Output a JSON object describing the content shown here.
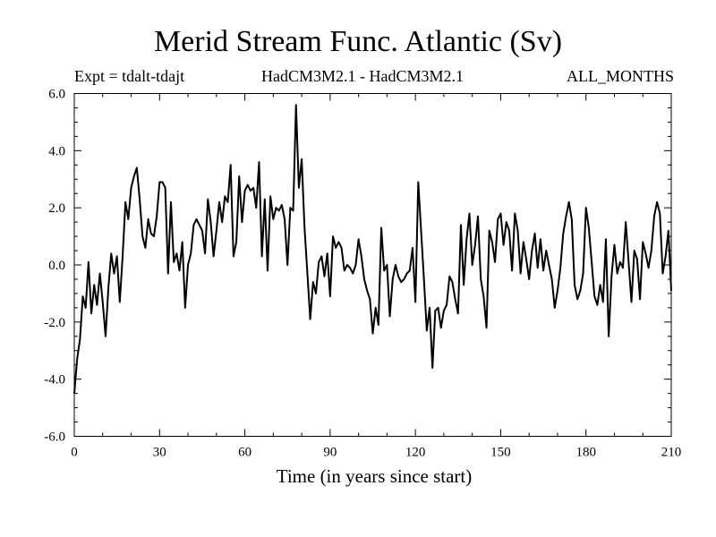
{
  "header": {
    "title": "Merid Stream Func. Atlantic (Sv)",
    "expt_label": "Expt = tdalt-tdajt",
    "model_label": "HadCM3M2.1 - HadCM3M2.1",
    "months_label": "ALL_MONTHS"
  },
  "colors": {
    "line": "#000000",
    "background": "#ffffff",
    "axis": "#000000"
  },
  "chart_data": {
    "type": "line",
    "title": "Merid Stream Func. Atlantic (Sv)",
    "xlabel": "Time (in years since start)",
    "ylabel": "",
    "xlim": [
      0,
      210
    ],
    "ylim": [
      -6,
      6
    ],
    "x_ticks": [
      0,
      30,
      60,
      90,
      120,
      150,
      180,
      210
    ],
    "x_tick_labels": [
      "0",
      "30",
      "60",
      "90",
      "120",
      "150",
      "180",
      "210"
    ],
    "y_ticks": [
      -6,
      -4,
      -2,
      0,
      2,
      4,
      6
    ],
    "y_tick_labels": [
      "-6.0",
      "-4.0",
      "-2.0",
      "0.0",
      "2.0",
      "4.0",
      "6.0"
    ],
    "grid": false,
    "series": [
      {
        "name": "tdalt-tdajt",
        "x_start": 0,
        "x_step": 1,
        "values": [
          -4.5,
          -3.3,
          -2.6,
          -1.1,
          -1.5,
          0.1,
          -1.7,
          -0.7,
          -1.4,
          -0.3,
          -1.3,
          -2.5,
          -0.8,
          0.4,
          -0.3,
          0.3,
          -1.3,
          0.3,
          2.2,
          1.6,
          2.7,
          3.1,
          3.4,
          2.3,
          1.0,
          0.6,
          1.6,
          1.1,
          1.0,
          1.7,
          2.9,
          2.9,
          2.7,
          -0.3,
          2.2,
          0.1,
          0.4,
          -0.2,
          0.8,
          -1.5,
          0.0,
          0.4,
          1.4,
          1.6,
          1.4,
          1.2,
          0.4,
          2.3,
          1.5,
          0.3,
          1.2,
          2.2,
          1.5,
          2.4,
          2.2,
          3.5,
          0.3,
          0.8,
          3.1,
          1.5,
          2.6,
          2.8,
          2.6,
          2.7,
          2.0,
          3.6,
          0.3,
          2.3,
          -0.2,
          2.4,
          1.6,
          2.0,
          1.9,
          2.1,
          1.6,
          0.0,
          2.0,
          1.9,
          5.6,
          2.7,
          3.7,
          1.3,
          -0.3,
          -1.9,
          -0.6,
          -1.0,
          0.1,
          0.3,
          -0.4,
          0.4,
          -1.1,
          1.0,
          0.6,
          0.8,
          0.6,
          -0.2,
          0.0,
          -0.1,
          -0.3,
          0.0,
          0.9,
          0.3,
          -0.5,
          -0.9,
          -1.2,
          -2.4,
          -1.5,
          -2.1,
          1.3,
          -0.2,
          0.0,
          -1.8,
          -0.5,
          0.0,
          -0.4,
          -0.6,
          -0.5,
          -0.3,
          -0.2,
          0.6,
          -1.3,
          2.9,
          1.2,
          -0.5,
          -2.3,
          -1.5,
          -3.6,
          -1.6,
          -1.5,
          -2.2,
          -1.6,
          -1.4,
          -0.4,
          -0.6,
          -1.2,
          -1.7,
          1.4,
          -0.7,
          0.9,
          1.8,
          0.0,
          0.7,
          1.7,
          -0.5,
          -1.1,
          -2.2,
          1.2,
          0.8,
          0.1,
          1.6,
          1.8,
          0.7,
          1.5,
          1.2,
          -0.2,
          1.8,
          1.2,
          -0.3,
          0.8,
          0.2,
          -0.5,
          0.5,
          1.1,
          -0.1,
          0.9,
          -0.2,
          0.5,
          0.0,
          -0.5,
          -1.5,
          -0.9,
          -0.1,
          1.1,
          1.7,
          2.2,
          1.6,
          -0.7,
          -1.2,
          -0.9,
          -0.3,
          2.0,
          1.3,
          0.1,
          -1.1,
          -1.4,
          -0.7,
          -1.3,
          0.9,
          -2.5,
          -0.4,
          0.7,
          -0.3,
          0.1,
          -0.1,
          1.5,
          0.1,
          -1.3,
          0.5,
          0.2,
          -1.2,
          0.8,
          0.4,
          -0.1,
          0.5,
          1.7,
          2.2,
          1.8,
          -0.3,
          0.3,
          1.2,
          -0.9
        ]
      }
    ]
  }
}
